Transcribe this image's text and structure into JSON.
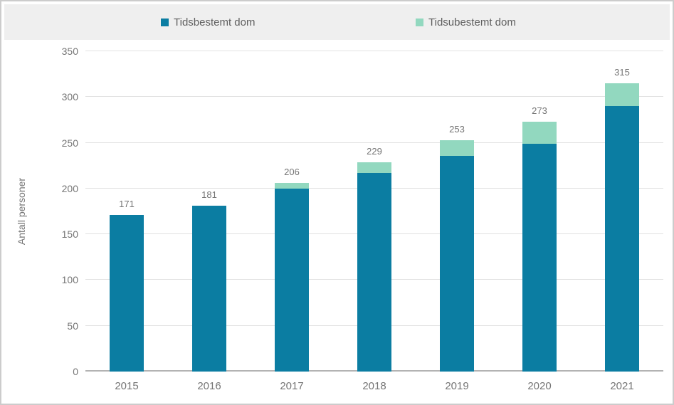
{
  "legend": {
    "items": [
      {
        "label": "Tidsbestemt dom",
        "color": "#0b7da2"
      },
      {
        "label": "Tidsubestemt dom",
        "color": "#92d8bf"
      }
    ]
  },
  "axes": {
    "ylabel": "Antall personer",
    "yticks": [
      0,
      50,
      100,
      150,
      200,
      250,
      300,
      350
    ]
  },
  "chart_data": {
    "type": "bar",
    "stacked": true,
    "title": "",
    "categories": [
      "2015",
      "2016",
      "2017",
      "2018",
      "2019",
      "2020",
      "2021"
    ],
    "series": [
      {
        "name": "Tidsbestemt dom",
        "color": "#0b7da2",
        "values": [
          171,
          181,
          200,
          217,
          236,
          249,
          290
        ]
      },
      {
        "name": "Tidsubestemt dom",
        "color": "#92d8bf",
        "values": [
          0,
          0,
          6,
          12,
          17,
          24,
          25
        ]
      }
    ],
    "totals": [
      171,
      181,
      206,
      229,
      253,
      273,
      315
    ],
    "totals_labels_shown": true,
    "xlabel": "",
    "ylabel": "Antall personer",
    "ylim": [
      0,
      350
    ],
    "ytick_step": 50,
    "grid": true,
    "legend_position": "top"
  }
}
